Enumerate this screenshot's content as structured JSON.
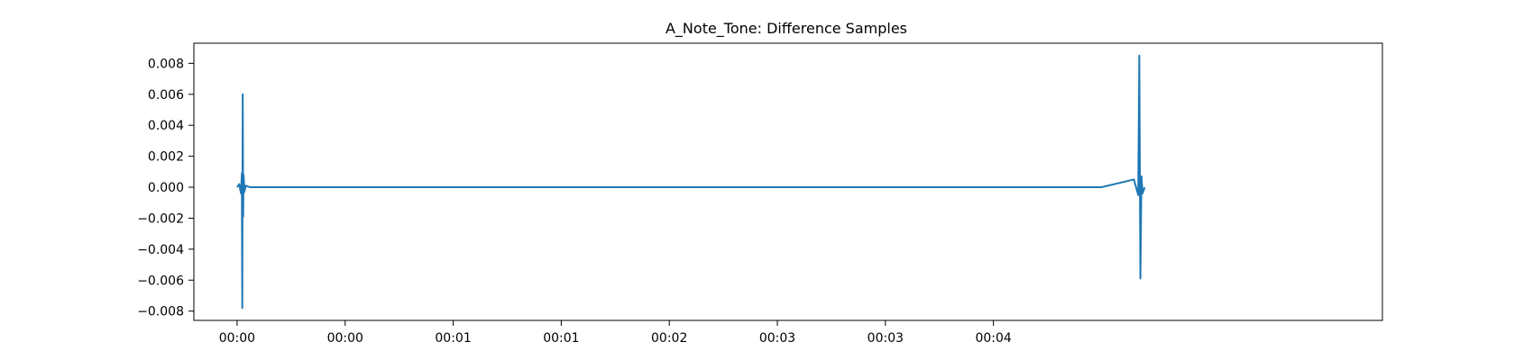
{
  "chart_data": {
    "type": "line",
    "title": "A_Note_Tone: Difference Samples",
    "xlabel": "",
    "ylabel": "",
    "xlim": [
      -0.2,
      5.3
    ],
    "ylim": [
      -0.0086,
      0.0093
    ],
    "grid": false,
    "legend": "none",
    "x_ticks": {
      "values": [
        0.0,
        0.5,
        1.0,
        1.5,
        2.0,
        2.5,
        3.0,
        3.5
      ],
      "labels": [
        "00:00",
        "00:00",
        "00:01",
        "00:01",
        "00:02",
        "00:03",
        "00:03",
        "00:04"
      ]
    },
    "y_ticks": {
      "values": [
        0.008,
        0.006,
        0.004,
        0.002,
        0.0,
        -0.002,
        -0.004,
        -0.006,
        -0.008
      ],
      "labels": [
        "0.008",
        "0.006",
        "0.004",
        "0.002",
        "0.000",
        "−0.002",
        "−0.004",
        "−0.006",
        "−0.008"
      ]
    },
    "series": [
      {
        "color": "#1f77b4",
        "x": [
          0.0,
          0.01,
          0.018,
          0.022,
          0.024,
          0.026,
          0.028,
          0.03,
          0.034,
          0.04,
          0.06,
          0.1,
          1.0,
          2.0,
          3.0,
          4.0,
          4.15,
          4.17,
          4.175,
          4.18,
          4.185,
          4.19,
          4.2
        ],
        "y": [
          0.0,
          0.0002,
          -0.0004,
          0.0009,
          -0.0078,
          0.006,
          -0.0019,
          0.0008,
          -0.0003,
          0.0001,
          0.0,
          0.0,
          0.0,
          0.0,
          0.0,
          0.0,
          0.0005,
          -0.0005,
          0.0085,
          -0.0059,
          0.0007,
          -0.0004,
          0.0
        ]
      }
    ]
  }
}
